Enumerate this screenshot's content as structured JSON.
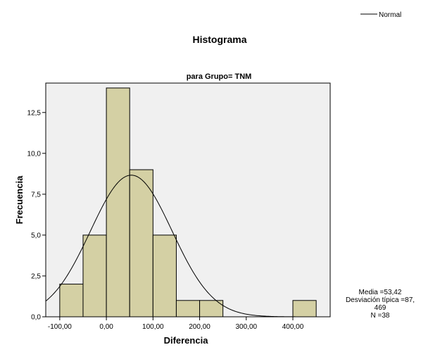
{
  "chart_data": {
    "type": "bar",
    "title": "Histograma",
    "subtitle": "para Grupo= TNM",
    "xlabel": "Diferencia",
    "ylabel": "Frecuencia",
    "legend": {
      "entries": [
        "Normal"
      ],
      "placement": "top-right"
    },
    "x_ticks": [
      -100,
      0,
      100,
      200,
      300,
      400
    ],
    "x_tick_labels": [
      "-100,00",
      "0,00",
      "100,00",
      "200,00",
      "300,00",
      "400,00"
    ],
    "y_ticks": [
      0,
      2.5,
      5,
      7.5,
      10,
      12.5
    ],
    "y_tick_labels": [
      "0,0",
      "2,5",
      "5,0",
      "7,5",
      "10,0",
      "12,5"
    ],
    "xlim": [
      -130,
      480
    ],
    "ylim": [
      0,
      14.3
    ],
    "bin_width": 50,
    "bins": [
      {
        "start": -100,
        "end": -50,
        "count": 2
      },
      {
        "start": -50,
        "end": 0,
        "count": 5
      },
      {
        "start": 0,
        "end": 50,
        "count": 14
      },
      {
        "start": 50,
        "end": 100,
        "count": 9
      },
      {
        "start": 100,
        "end": 150,
        "count": 5
      },
      {
        "start": 150,
        "end": 200,
        "count": 1
      },
      {
        "start": 200,
        "end": 250,
        "count": 1
      },
      {
        "start": 400,
        "end": 450,
        "count": 1
      }
    ],
    "normal_curve": {
      "mean": 53.42,
      "sd": 87.469,
      "n": 38
    },
    "stats_lines": [
      "Media =53,42",
      "Desviación típica =87,",
      "469",
      "N =38"
    ],
    "colors": {
      "bar_fill": "#d4d0a4",
      "plot_bg": "#f0f0f0",
      "curve": "#000000"
    },
    "grid": false
  }
}
